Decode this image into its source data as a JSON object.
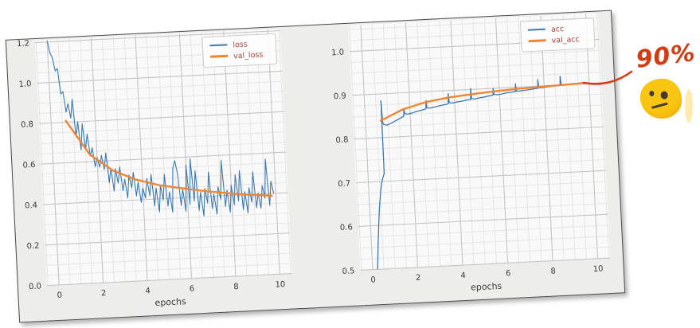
{
  "figure": {
    "background": "#ededeb",
    "plot_background": "#f9f9f9",
    "border_color": "#4a4a4a",
    "grid_major_color": "#c5c5c5",
    "grid_minor_color": "#e6e6e6",
    "tick_label_color": "#3b3b3b",
    "axis_label_color": "#3b3b3b",
    "legend_text_color": "#a8453a",
    "legend_border_color": "#cccccc",
    "legend_background": "#fdfdfd"
  },
  "annotation": {
    "text": "90%",
    "color": "#d23c10",
    "emoji": "face-with-diagonal-mouth",
    "emoji_color": "#f9c513",
    "emoji_shade": "#f0a800"
  },
  "chart_data": [
    {
      "type": "line",
      "name": "loss-chart",
      "title": "",
      "xlabel": "epochs",
      "ylabel": "",
      "xlim": [
        -0.55,
        10.55
      ],
      "ylim": [
        0,
        1.21
      ],
      "xticks": [
        0,
        2,
        4,
        6,
        8,
        10
      ],
      "xtick_labels": [
        "0",
        "2",
        "4",
        "6",
        "8",
        "10"
      ],
      "yticks": [
        0,
        0.2,
        0.4,
        0.6,
        0.8,
        1.0,
        1.2
      ],
      "ytick_labels": [
        "0.0",
        "0.2",
        "0.4",
        "0.6",
        "0.8",
        "1.0",
        "1.2"
      ],
      "x_minor_step": 0.5,
      "y_minor_step": 0.05,
      "grid": true,
      "legend_position": "upper right",
      "series": [
        {
          "name": "loss",
          "color": "#3c78b3",
          "width": 1.1,
          "x0": 0,
          "dx": 0.1,
          "y": [
            1.205,
            1.146,
            1.12,
            1.056,
            1.067,
            0.941,
            0.952,
            0.851,
            0.891,
            0.819,
            0.912,
            0.725,
            0.8,
            0.66,
            0.79,
            0.66,
            0.737,
            0.627,
            0.668,
            0.574,
            0.618,
            0.571,
            0.629,
            0.558,
            0.64,
            0.492,
            0.562,
            0.449,
            0.56,
            0.487,
            0.567,
            0.449,
            0.505,
            0.412,
            0.525,
            0.462,
            0.537,
            0.42,
            0.488,
            0.387,
            0.456,
            0.407,
            0.503,
            0.418,
            0.523,
            0.367,
            0.454,
            0.335,
            0.467,
            0.393,
            0.52,
            0.362,
            0.432,
            0.331,
            0.55,
            0.585,
            0.52,
            0.362,
            0.442,
            0.332,
            0.56,
            0.365,
            0.59,
            0.381,
            0.53,
            0.334,
            0.423,
            0.305,
            0.44,
            0.367,
            0.52,
            0.339,
            0.411,
            0.311,
            0.446,
            0.383,
            0.575,
            0.346,
            0.427,
            0.318,
            0.45,
            0.354,
            0.5,
            0.371,
            0.52,
            0.326,
            0.415,
            0.31,
            0.433,
            0.361,
            0.51,
            0.333,
            0.405,
            0.33,
            0.441,
            0.378,
            0.57,
            0.341,
            0.46,
            0.4
          ]
        },
        {
          "name": "val_loss",
          "color": "#ef8636",
          "width": 2.4,
          "x": [
            0.65,
            1.68,
            2.7,
            3.72,
            4.74,
            5.76,
            6.78,
            7.8,
            8.83,
            9.85
          ],
          "y": [
            0.81,
            0.635,
            0.55,
            0.5,
            0.468,
            0.447,
            0.428,
            0.412,
            0.398,
            0.388
          ]
        }
      ]
    },
    {
      "type": "line",
      "name": "accuracy-chart",
      "title": "",
      "xlabel": "epochs",
      "ylabel": "",
      "xlim": [
        -0.55,
        10.55
      ],
      "ylim": [
        0.5,
        1.06
      ],
      "xticks": [
        0,
        2,
        4,
        6,
        8,
        10
      ],
      "xtick_labels": [
        "0",
        "2",
        "4",
        "6",
        "8",
        "10"
      ],
      "yticks": [
        0.5,
        0.6,
        0.7,
        0.8,
        0.9,
        1.0
      ],
      "ytick_labels": [
        "0.5",
        "0.6",
        "0.7",
        "0.8",
        "0.9",
        "1.0"
      ],
      "x_minor_step": 0.5,
      "y_minor_step": 0.025,
      "grid": true,
      "legend_position": "upper right",
      "series": [
        {
          "name": "acc",
          "color": "#3c78b3",
          "width": 1.3,
          "points": [
            [
              0.22,
              0.5
            ],
            [
              0.26,
              0.53
            ],
            [
              0.3,
              0.558
            ],
            [
              0.34,
              0.585
            ],
            [
              0.38,
              0.61
            ],
            [
              0.42,
              0.633
            ],
            [
              0.46,
              0.652
            ],
            [
              0.5,
              0.668
            ],
            [
              0.54,
              0.682
            ],
            [
              0.58,
              0.694
            ],
            [
              0.62,
              0.703
            ],
            [
              0.66,
              0.71
            ],
            [
              0.7,
              0.715
            ],
            [
              0.72,
              0.72
            ],
            [
              0.73,
              0.884
            ],
            [
              0.76,
              0.835
            ],
            [
              0.8,
              0.83
            ],
            [
              0.95,
              0.828
            ],
            [
              1.1,
              0.831
            ],
            [
              1.3,
              0.836
            ],
            [
              1.5,
              0.841
            ],
            [
              1.65,
              0.845
            ],
            [
              1.71,
              0.846
            ],
            [
              1.73,
              0.864
            ],
            [
              1.76,
              0.852
            ],
            [
              1.9,
              0.851
            ],
            [
              2.1,
              0.853
            ],
            [
              2.3,
              0.856
            ],
            [
              2.5,
              0.858
            ],
            [
              2.65,
              0.86
            ],
            [
              2.71,
              0.861
            ],
            [
              2.73,
              0.88
            ],
            [
              2.76,
              0.863
            ],
            [
              2.9,
              0.862
            ],
            [
              3.1,
              0.864
            ],
            [
              3.3,
              0.866
            ],
            [
              3.5,
              0.868
            ],
            [
              3.65,
              0.869
            ],
            [
              3.71,
              0.87
            ],
            [
              3.73,
              0.893
            ],
            [
              3.76,
              0.872
            ],
            [
              3.9,
              0.871
            ],
            [
              4.1,
              0.873
            ],
            [
              4.3,
              0.874
            ],
            [
              4.5,
              0.876
            ],
            [
              4.65,
              0.877
            ],
            [
              4.71,
              0.877
            ],
            [
              4.73,
              0.902
            ],
            [
              4.76,
              0.879
            ],
            [
              4.9,
              0.878
            ],
            [
              5.1,
              0.88
            ],
            [
              5.3,
              0.881
            ],
            [
              5.5,
              0.883
            ],
            [
              5.65,
              0.884
            ],
            [
              5.71,
              0.884
            ],
            [
              5.73,
              0.9
            ],
            [
              5.76,
              0.886
            ],
            [
              5.9,
              0.885
            ],
            [
              6.1,
              0.886
            ],
            [
              6.3,
              0.888
            ],
            [
              6.5,
              0.889
            ],
            [
              6.65,
              0.89
            ],
            [
              6.71,
              0.89
            ],
            [
              6.73,
              0.908
            ],
            [
              6.76,
              0.891
            ],
            [
              6.9,
              0.891
            ],
            [
              7.1,
              0.892
            ],
            [
              7.3,
              0.893
            ],
            [
              7.5,
              0.894
            ],
            [
              7.65,
              0.895
            ],
            [
              7.71,
              0.895
            ],
            [
              7.73,
              0.915
            ],
            [
              7.76,
              0.896
            ],
            [
              7.9,
              0.896
            ],
            [
              8.1,
              0.897
            ],
            [
              8.3,
              0.898
            ],
            [
              8.5,
              0.899
            ],
            [
              8.65,
              0.899
            ],
            [
              8.71,
              0.9
            ],
            [
              8.73,
              0.92
            ],
            [
              8.76,
              0.9
            ],
            [
              8.9,
              0.9
            ],
            [
              9.1,
              0.901
            ],
            [
              9.3,
              0.902
            ],
            [
              9.5,
              0.902
            ],
            [
              9.7,
              0.903
            ],
            [
              9.85,
              0.903
            ]
          ]
        },
        {
          "name": "val_acc",
          "color": "#ef8636",
          "width": 2.4,
          "x": [
            0.65,
            1.68,
            2.7,
            3.72,
            4.74,
            5.76,
            6.78,
            7.8,
            8.83,
            9.85
          ],
          "y": [
            0.838,
            0.862,
            0.876,
            0.884,
            0.889,
            0.893,
            0.896,
            0.898,
            0.9,
            0.902
          ]
        }
      ]
    }
  ]
}
